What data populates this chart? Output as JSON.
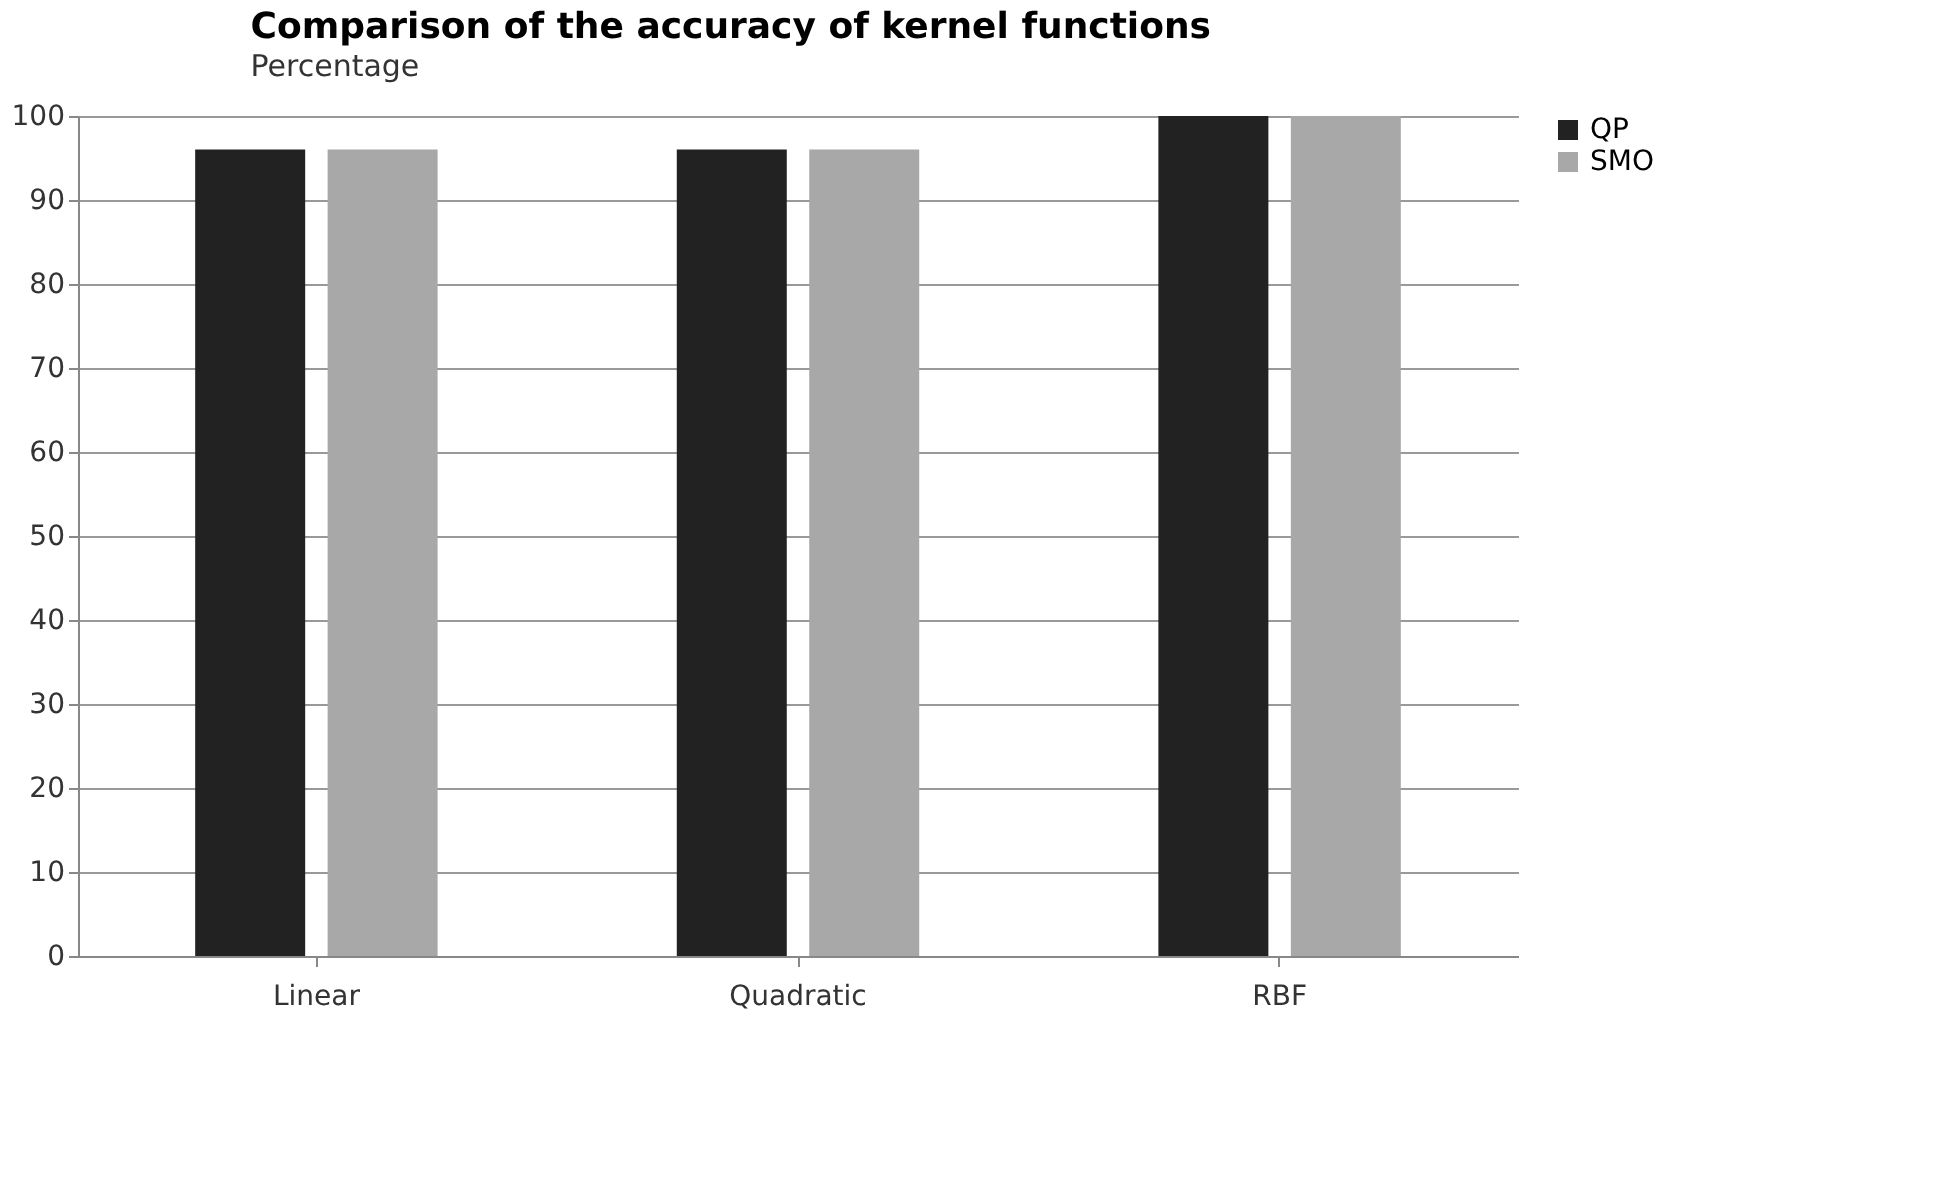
{
  "chart_data": {
    "type": "bar",
    "title": "Comparison of the accuracy of kernel functions",
    "ylabel": "Percentage",
    "categories": [
      "Linear",
      "Quadratic",
      "RBF"
    ],
    "series": [
      {
        "name": "QP",
        "color": "#222222",
        "values": [
          96,
          96,
          100
        ]
      },
      {
        "name": "SMO",
        "color": "#a8a8a8",
        "values": [
          96,
          96,
          100
        ]
      }
    ],
    "ylim": [
      0,
      100
    ],
    "yticks": [
      0,
      10,
      20,
      30,
      40,
      50,
      60,
      70,
      80,
      90,
      100
    ],
    "grid": "y",
    "legend": "right"
  }
}
